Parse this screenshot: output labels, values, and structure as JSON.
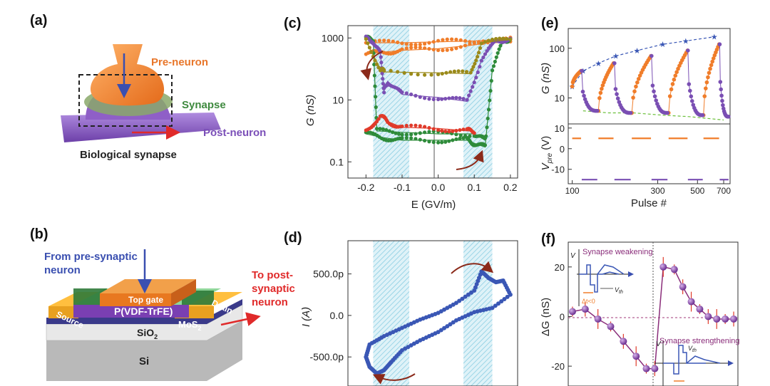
{
  "panels": {
    "a": {
      "label": "(a)",
      "pre": "Pre-neuron",
      "synapse": "Synapse",
      "post": "Post-neuron",
      "caption": "Biological synapse"
    },
    "b": {
      "label": "(b)",
      "from_line1": "From pre-synaptic",
      "from_line2": "neuron",
      "to_line1": "To post-",
      "to_line2": "synaptic",
      "to_line3": "neuron",
      "top_gate": "Top gate",
      "pvdf": "P(VDF-TrFE)",
      "source": "Source",
      "drain": "Drain",
      "mos2": "MoS",
      "mos2_sub": "2",
      "sio2": "SiO",
      "sio2_sub": "2",
      "si": "Si"
    },
    "c": {
      "label": "(c)"
    },
    "d": {
      "label": "(d)"
    },
    "e": {
      "label": "(e)"
    },
    "f": {
      "label": "(f)",
      "inset_top": "Synapse weakening",
      "inset_bottom": "Synapse strengthening",
      "dt_neg": "Δt<0",
      "vth": "V",
      "vth_sub": "th",
      "v": "V"
    }
  },
  "colors": {
    "orange": "#f07d2a",
    "green": "#2e8b3a",
    "purple": "#7a4fb3",
    "red": "#e03a2a",
    "olive": "#9a8a1a",
    "blue": "#3a57b5",
    "hatch": "#7fc9df",
    "arrow": "#8b2a1a",
    "magenta": "#8a2d7a"
  },
  "chart_data": [
    {
      "panel": "c",
      "type": "line",
      "xlabel": "E (GV/m)",
      "ylabel": "G (nS)",
      "yscale": "log",
      "xlim": [
        -0.25,
        0.22
      ],
      "ylim": [
        0.03,
        2500
      ],
      "xticks": [
        "-0.2",
        "-0.1",
        "0.0",
        "0.1",
        "0.2"
      ],
      "xtick_values": [
        -0.2,
        -0.1,
        0.0,
        0.1,
        0.2
      ],
      "yticks": [
        "0.1",
        "10",
        "1000"
      ],
      "ytick_values": [
        0.1,
        10,
        1000
      ],
      "shaded_ranges": [
        [
          -0.18,
          -0.08
        ],
        [
          0.07,
          0.15
        ]
      ],
      "series": [
        {
          "color": "orange",
          "lower": [
            [
              -0.2,
              300
            ],
            [
              -0.15,
              350
            ],
            [
              -0.1,
              400
            ],
            [
              0,
              450
            ],
            [
              0.1,
              600
            ],
            [
              0.2,
              900
            ]
          ],
          "upper": [
            [
              -0.2,
              700
            ],
            [
              -0.1,
              700
            ],
            [
              0,
              750
            ],
            [
              0.1,
              800
            ],
            [
              0.2,
              900
            ]
          ]
        },
        {
          "color": "green",
          "lower": [
            [
              -0.2,
              0.8
            ],
            [
              -0.15,
              0.6
            ],
            [
              -0.1,
              0.5
            ],
            [
              0,
              0.5
            ],
            [
              0.08,
              0.5
            ],
            [
              0.1,
              0.4
            ],
            [
              0.13,
              0.3
            ],
            [
              0.15,
              100
            ],
            [
              0.18,
              800
            ],
            [
              0.2,
              950
            ]
          ],
          "upper": [
            [
              -0.2,
              950
            ],
            [
              -0.18,
              900
            ],
            [
              -0.17,
              1.0
            ],
            [
              -0.1,
              0.9
            ],
            [
              0,
              0.8
            ],
            [
              0.1,
              0.8
            ],
            [
              0.13,
              0.5
            ]
          ]
        },
        {
          "color": "purple",
          "lower": [
            [
              -0.15,
              20
            ],
            [
              -0.14,
              40
            ],
            [
              -0.1,
              15
            ],
            [
              0,
              12
            ],
            [
              0.08,
              9
            ],
            [
              0.12,
              200
            ],
            [
              0.16,
              800
            ],
            [
              0.2,
              950
            ]
          ],
          "upper": [
            [
              -0.2,
              950
            ],
            [
              -0.18,
              800
            ],
            [
              -0.16,
              300
            ],
            [
              -0.15,
              20
            ]
          ]
        },
        {
          "color": "olive",
          "lower": [
            [
              -0.15,
              80
            ],
            [
              0,
              75
            ],
            [
              0.09,
              70
            ],
            [
              0.12,
              700
            ],
            [
              0.2,
              900
            ]
          ],
          "upper": [
            [
              -0.2,
              800
            ],
            [
              -0.16,
              100
            ],
            [
              -0.15,
              80
            ]
          ]
        },
        {
          "color": "red",
          "lower": [
            [
              -0.2,
              1.0
            ],
            [
              -0.16,
              3
            ],
            [
              -0.14,
              2
            ],
            [
              -0.1,
              1.3
            ],
            [
              0,
              1.2
            ],
            [
              0.08,
              1.0
            ],
            [
              0.1,
              1.0
            ]
          ]
        }
      ]
    },
    {
      "panel": "d",
      "type": "scatter",
      "xlabel": "",
      "ylabel": "I (A)",
      "yticks": [
        "500.0p",
        "0.0",
        "-500.0p"
      ],
      "ytick_values": [
        500,
        0,
        -500
      ],
      "xlim": [
        -0.25,
        0.22
      ],
      "ylim": [
        -850,
        900
      ],
      "shaded_ranges": [
        [
          -0.18,
          -0.08
        ],
        [
          0.07,
          0.15
        ]
      ],
      "series": [
        {
          "color": "blue",
          "points": [
            [
              -0.2,
              -500
            ],
            [
              -0.19,
              -620
            ],
            [
              -0.17,
              -700
            ],
            [
              -0.15,
              -660
            ],
            [
              -0.13,
              -560
            ],
            [
              -0.1,
              -420
            ],
            [
              -0.05,
              -300
            ],
            [
              0,
              -200
            ],
            [
              0.05,
              -60
            ],
            [
              0.1,
              40
            ],
            [
              0.15,
              90
            ],
            [
              0.2,
              250
            ],
            [
              0.18,
              420
            ],
            [
              0.16,
              400
            ],
            [
              0.14,
              450
            ],
            [
              0.12,
              530
            ],
            [
              0.1,
              300
            ],
            [
              0.05,
              150
            ],
            [
              0,
              30
            ],
            [
              -0.05,
              -50
            ],
            [
              -0.1,
              -150
            ],
            [
              -0.15,
              -250
            ],
            [
              -0.19,
              -350
            ]
          ]
        }
      ]
    },
    {
      "panel": "e-top",
      "type": "scatter",
      "xlabel": "Pulse #",
      "ylabel": "G (nS)",
      "yscale": "log",
      "xscale": "log",
      "xlim": [
        95,
        760
      ],
      "ylim": [
        3,
        250
      ],
      "yticks": [
        "10",
        "100"
      ],
      "ytick_values": [
        10,
        100
      ],
      "envelope_max": [
        [
          100,
          17
        ],
        [
          115,
          35
        ],
        [
          140,
          50
        ],
        [
          175,
          70
        ],
        [
          230,
          90
        ],
        [
          320,
          120
        ],
        [
          430,
          140
        ],
        [
          620,
          170
        ]
      ],
      "envelope_min": [
        [
          115,
          5.5
        ],
        [
          160,
          5
        ],
        [
          220,
          5
        ],
        [
          320,
          4.5
        ],
        [
          450,
          4.2
        ],
        [
          700,
          3.6
        ]
      ]
    },
    {
      "panel": "e-bottom",
      "type": "line",
      "xlabel": "Pulse #",
      "ylabel": "V_pre (V)",
      "xscale": "log",
      "xlim": [
        95,
        760
      ],
      "ylim": [
        -17,
        12
      ],
      "xticks": [
        "100",
        "300",
        "500",
        "700"
      ],
      "xtick_values": [
        100,
        300,
        500,
        700
      ],
      "yticks": [
        "10",
        "0",
        "-10"
      ],
      "ytick_values": [
        10,
        0,
        -10
      ],
      "positive_pulses": [
        [
          100,
          112
        ],
        [
          140,
          170
        ],
        [
          215,
          275
        ],
        [
          345,
          440
        ],
        [
          540,
          660
        ]
      ],
      "negative_pulses": [
        [
          113,
          138
        ],
        [
          172,
          212
        ],
        [
          277,
          340
        ],
        [
          442,
          535
        ],
        [
          665,
          745
        ]
      ],
      "positive_level": 5,
      "negative_level": -15
    },
    {
      "panel": "f",
      "type": "line",
      "xlabel": "",
      "ylabel": "ΔG (nS)",
      "xlim": [
        -10,
        10
      ],
      "ylim": [
        -28,
        30
      ],
      "yticks": [
        "20",
        "0",
        "-20"
      ],
      "ytick_values": [
        20,
        0,
        -20
      ],
      "series": [
        {
          "color": "magenta",
          "points": [
            [
              -9.5,
              2
            ],
            [
              -8,
              3
            ],
            [
              -6.5,
              -1
            ],
            [
              -5,
              -4
            ],
            [
              -3.5,
              -10
            ],
            [
              -2,
              -16
            ],
            [
              -0.8,
              -21
            ],
            [
              0.2,
              -21
            ]
          ]
        },
        {
          "color": "magenta",
          "points": [
            [
              1.2,
              20
            ],
            [
              2.5,
              19
            ],
            [
              3.5,
              12
            ],
            [
              4.5,
              6
            ],
            [
              5.5,
              3
            ],
            [
              6.5,
              0
            ],
            [
              7.5,
              -1
            ],
            [
              8.5,
              -1
            ],
            [
              9.5,
              -1
            ]
          ]
        }
      ]
    }
  ]
}
